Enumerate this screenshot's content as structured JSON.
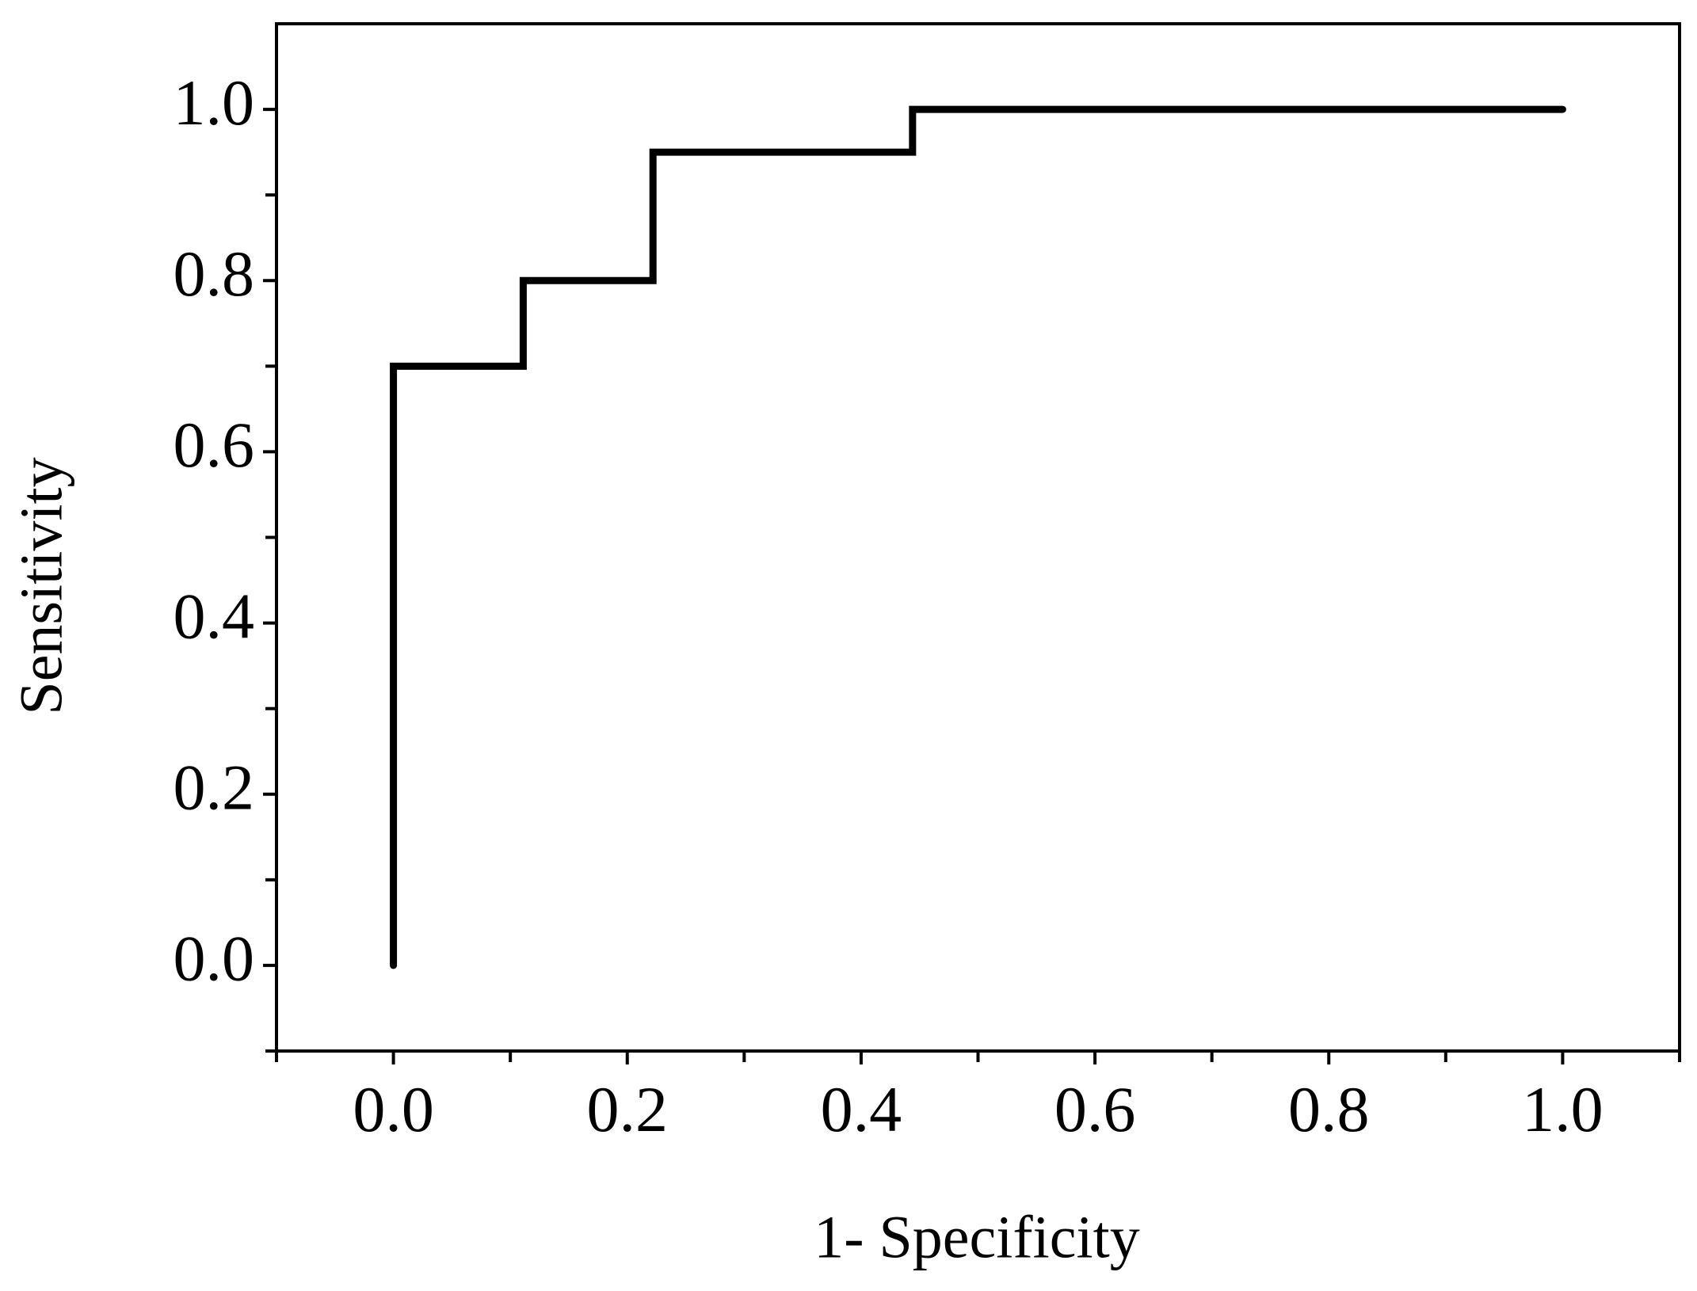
{
  "chart_data": {
    "type": "line",
    "x_label": "1- Specificity",
    "y_label": "Sensitivity",
    "x": [
      0,
      0,
      0.111,
      0.111,
      0.222,
      0.222,
      0.444,
      0.444,
      1.0
    ],
    "series": [
      {
        "color": "#000000",
        "values": [
          0,
          0.7,
          0.7,
          0.8,
          0.8,
          0.95,
          0.95,
          1.0,
          1.0
        ]
      }
    ],
    "xlim": [
      -0.1,
      1.1
    ],
    "ylim": [
      -0.1,
      1.1
    ],
    "xticks": [
      {
        "value": 0,
        "label": "0.0"
      },
      0.2,
      0.4,
      0.6,
      0.8,
      {
        "value": 1,
        "label": "1.0"
      }
    ],
    "yticks": [
      {
        "value": 0,
        "label": "0.0"
      },
      0.2,
      0.4,
      0.6,
      0.8,
      {
        "value": 1,
        "label": "1.0"
      }
    ],
    "xminorticks": [
      -0.1,
      0.1,
      0.3,
      0.5,
      0.7,
      0.9,
      1.1
    ],
    "yminorticks": [
      -0.1,
      0.1,
      0.3,
      0.5,
      0.7,
      0.9
    ],
    "grid": false
  }
}
